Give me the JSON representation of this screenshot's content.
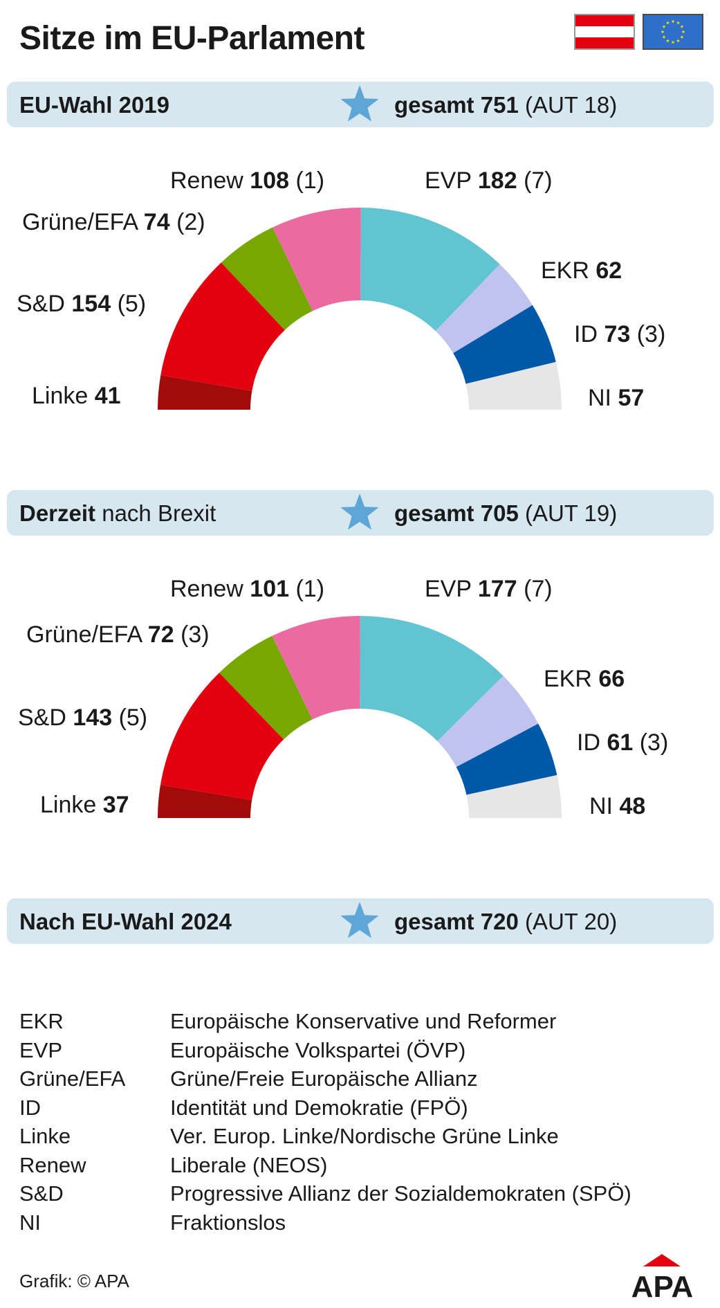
{
  "title": "Sitze im EU-Parlament",
  "colors": {
    "Linke": "#a30a0a",
    "S&D": "#e3000f",
    "Grüne/EFA": "#76a800",
    "Renew": "#ec6aa2",
    "EVP": "#62c4d0",
    "EKR": "#c1c3ef",
    "ID": "#0058a8",
    "NI": "#e6e6e6",
    "bar": "#d6e7f0",
    "star": "#5ea6d6"
  },
  "sections": [
    {
      "bold": "EU-Wahl 2019",
      "rest": "",
      "total_label": "gesamt",
      "total": "751",
      "aut": "(AUT 18)"
    },
    {
      "bold": "Derzeit",
      "rest": " nach Brexit",
      "total_label": "gesamt",
      "total": "705",
      "aut": "(AUT 19)"
    },
    {
      "bold": "Nach EU-Wahl 2024",
      "rest": "",
      "total_label": "gesamt",
      "total": "720",
      "aut": "(AUT 20)"
    }
  ],
  "chart_data": [
    {
      "type": "pie",
      "subtype": "half-donut",
      "total": 751,
      "slices": [
        {
          "name": "Linke",
          "value": 41,
          "aut": ""
        },
        {
          "name": "S&D",
          "value": 154,
          "aut": "(5)"
        },
        {
          "name": "Grüne/EFA",
          "value": 74,
          "aut": "(2)"
        },
        {
          "name": "Renew",
          "value": 108,
          "aut": "(1)"
        },
        {
          "name": "EVP",
          "value": 182,
          "aut": "(7)"
        },
        {
          "name": "EKR",
          "value": 62,
          "aut": ""
        },
        {
          "name": "ID",
          "value": 73,
          "aut": "(3)"
        },
        {
          "name": "NI",
          "value": 57,
          "aut": ""
        }
      ]
    },
    {
      "type": "pie",
      "subtype": "half-donut",
      "total": 705,
      "slices": [
        {
          "name": "Linke",
          "value": 37,
          "aut": ""
        },
        {
          "name": "S&D",
          "value": 143,
          "aut": "(5)"
        },
        {
          "name": "Grüne/EFA",
          "value": 72,
          "aut": "(3)"
        },
        {
          "name": "Renew",
          "value": 101,
          "aut": "(1)"
        },
        {
          "name": "EVP",
          "value": 177,
          "aut": "(7)"
        },
        {
          "name": "EKR",
          "value": 66,
          "aut": ""
        },
        {
          "name": "ID",
          "value": 61,
          "aut": "(3)"
        },
        {
          "name": "NI",
          "value": 48,
          "aut": ""
        }
      ]
    }
  ],
  "legend": [
    {
      "abbr": "EKR",
      "full": "Europäische Konservative und Reformer"
    },
    {
      "abbr": "EVP",
      "full": "Europäische Volkspartei (ÖVP)"
    },
    {
      "abbr": "Grüne/EFA",
      "full": "Grüne/Freie Europäische Allianz"
    },
    {
      "abbr": "ID",
      "full": "Identität und Demokratie (FPÖ)"
    },
    {
      "abbr": "Linke",
      "full": "Ver. Europ. Linke/Nordische Grüne Linke"
    },
    {
      "abbr": "Renew",
      "full": "Liberale (NEOS)"
    },
    {
      "abbr": "S&D",
      "full": "Progressive Allianz der Sozialdemokraten (SPÖ)"
    },
    {
      "abbr": "NI",
      "full": "Fraktionslos"
    }
  ],
  "credit": "Grafik: © APA",
  "logo": "APA"
}
